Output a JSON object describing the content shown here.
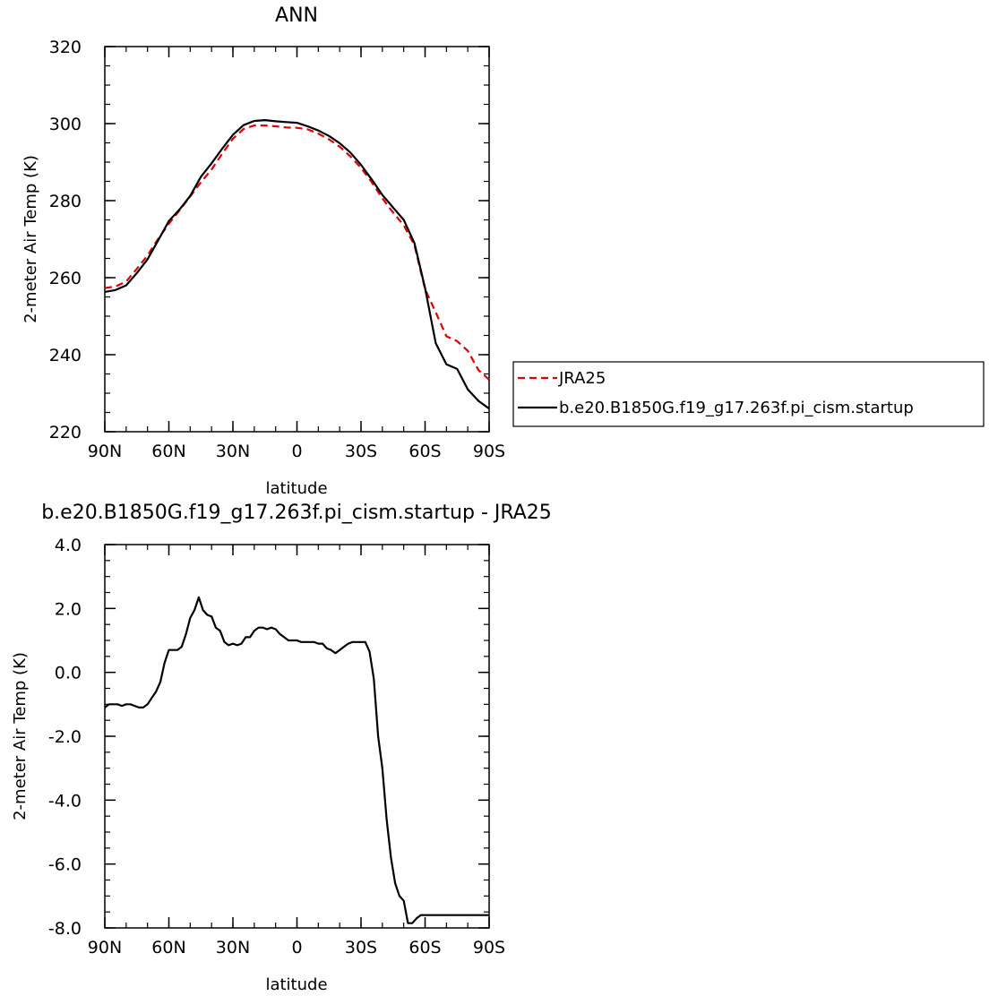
{
  "chart_data": [
    {
      "type": "line",
      "title": "ANN",
      "xlabel": "latitude",
      "ylabel": "2-meter Air Temp (K)",
      "xlim": [
        90,
        -90
      ],
      "ylim": [
        220,
        320
      ],
      "x_tick_values": [
        90,
        60,
        30,
        0,
        -30,
        -60,
        -90
      ],
      "x_tick_labels": [
        "90N",
        "60N",
        "30N",
        "0",
        "30S",
        "60S",
        "90S"
      ],
      "y_tick_values": [
        220,
        240,
        260,
        280,
        300,
        320
      ],
      "y_tick_labels": [
        "220",
        "240",
        "260",
        "280",
        "300",
        "320"
      ],
      "x": [
        90,
        85,
        80,
        75,
        70,
        65,
        60,
        55,
        50,
        45,
        40,
        35,
        30,
        25,
        20,
        15,
        10,
        5,
        0,
        -5,
        -10,
        -15,
        -20,
        -25,
        -30,
        -35,
        -40,
        -45,
        -50,
        -55,
        -60,
        -65,
        -70,
        -75,
        -80,
        -85,
        -90
      ],
      "series": [
        {
          "name": "JRA25",
          "color": "#e00000",
          "dash": true,
          "values": [
            257.3,
            257.7,
            259.0,
            262.3,
            265.8,
            270.1,
            274.0,
            277.5,
            281.1,
            284.8,
            288.1,
            292.2,
            296.1,
            298.6,
            299.5,
            299.5,
            299.3,
            299.0,
            298.9,
            298.5,
            297.4,
            295.9,
            294.0,
            291.5,
            288.5,
            284.8,
            280.6,
            276.9,
            273.6,
            268.5,
            257.0,
            251.0,
            244.8,
            243.5,
            241.0,
            236.0,
            233.5
          ]
        },
        {
          "name": "b.e20.B1850G.f19_g17.263f.pi_cism.startup",
          "color": "#000000",
          "dash": false,
          "values": [
            256.3,
            256.8,
            258.0,
            261.2,
            264.8,
            269.7,
            274.7,
            277.7,
            281.2,
            286.2,
            289.7,
            293.5,
            297.1,
            299.6,
            300.7,
            300.9,
            300.6,
            300.4,
            300.2,
            299.3,
            298.2,
            296.8,
            294.9,
            292.5,
            289.3,
            285.5,
            281.5,
            278.2,
            275.0,
            269.0,
            257.3,
            243.0,
            237.5,
            236.3,
            231.0,
            228.0,
            226.0
          ]
        }
      ]
    },
    {
      "type": "line",
      "title": "b.e20.B1850G.f19_g17.263f.pi_cism.startup  -  JRA25",
      "xlabel": "latitude",
      "ylabel": "2-meter Air Temp (K)",
      "xlim": [
        90,
        -90
      ],
      "ylim": [
        -8.0,
        4.0
      ],
      "x_tick_values": [
        90,
        60,
        30,
        0,
        -30,
        -60,
        -90
      ],
      "x_tick_labels": [
        "90N",
        "60N",
        "30N",
        "0",
        "30S",
        "60S",
        "90S"
      ],
      "y_tick_values": [
        -8.0,
        -6.0,
        -4.0,
        -2.0,
        0.0,
        2.0,
        4.0
      ],
      "y_tick_labels": [
        "-8.0",
        "-6.0",
        "-4.0",
        "-2.0",
        "0.0",
        "2.0",
        "4.0"
      ],
      "x": [
        90,
        88,
        86,
        84,
        82,
        80,
        78,
        76,
        74,
        72,
        70,
        68,
        66,
        64,
        62,
        60,
        58,
        56,
        54,
        52,
        50,
        48,
        46,
        44,
        42,
        40,
        38,
        36,
        34,
        32,
        30,
        28,
        26,
        24,
        22,
        20,
        18,
        16,
        14,
        12,
        10,
        8,
        6,
        4,
        2,
        0,
        -2,
        -4,
        -6,
        -8,
        -10,
        -12,
        -14,
        -16,
        -18,
        -20,
        -22,
        -24,
        -26,
        -28,
        -30,
        -32,
        -34,
        -36,
        -38,
        -40,
        -42,
        -44,
        -46,
        -48,
        -50,
        -52,
        -54,
        -56,
        -58,
        -60,
        -62,
        -64,
        -66,
        -68,
        -70,
        -72,
        -74,
        -76,
        -78,
        -80,
        -82,
        -84,
        -86,
        -88,
        -90
      ],
      "series": [
        {
          "name": "",
          "color": "#000000",
          "dash": false,
          "values": [
            -1.1,
            -1.0,
            -1.0,
            -1.0,
            -1.05,
            -1.0,
            -1.0,
            -1.05,
            -1.1,
            -1.1,
            -1.0,
            -0.8,
            -0.6,
            -0.3,
            0.3,
            0.7,
            0.7,
            0.7,
            0.8,
            1.2,
            1.7,
            1.95,
            2.35,
            1.95,
            1.8,
            1.75,
            1.4,
            1.3,
            0.95,
            0.85,
            0.9,
            0.85,
            0.9,
            1.1,
            1.1,
            1.3,
            1.4,
            1.4,
            1.35,
            1.4,
            1.35,
            1.2,
            1.1,
            1.0,
            1.0,
            1.0,
            0.95,
            0.95,
            0.95,
            0.95,
            0.9,
            0.9,
            0.75,
            0.7,
            0.6,
            0.7,
            0.8,
            0.9,
            0.95,
            0.95,
            0.95,
            0.95,
            0.65,
            -0.2,
            -2.0,
            -3.0,
            -4.6,
            -5.8,
            -6.6,
            -7.0,
            -7.15,
            -7.85,
            -7.85,
            -7.7,
            -7.6,
            -7.6,
            -7.6,
            -7.6,
            -7.6,
            -7.6,
            -7.6,
            -7.6,
            -7.6,
            -7.6,
            -7.6,
            -7.6,
            -7.6,
            -7.6,
            -7.6,
            -7.6,
            -7.6
          ]
        }
      ]
    }
  ]
}
